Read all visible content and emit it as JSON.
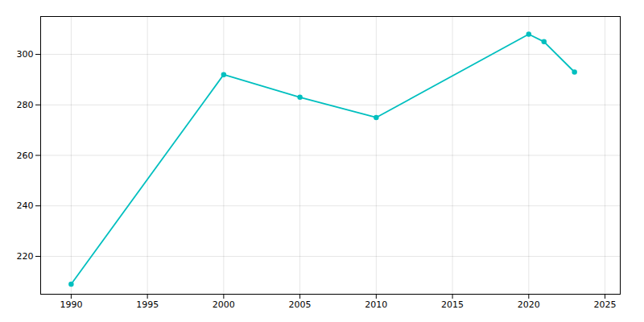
{
  "chart_data": {
    "type": "line",
    "x": [
      1990,
      2000,
      2005,
      2010,
      2020,
      2021,
      2023
    ],
    "values": [
      209,
      292,
      283,
      275,
      308,
      305,
      293
    ],
    "color": "#00BFBF",
    "marker": "circle",
    "xlim": [
      1988,
      2026
    ],
    "ylim": [
      205,
      315
    ],
    "xticks": [
      1990,
      1995,
      2000,
      2005,
      2010,
      2015,
      2020,
      2025
    ],
    "yticks": [
      220,
      240,
      260,
      280,
      300
    ],
    "grid": true
  }
}
